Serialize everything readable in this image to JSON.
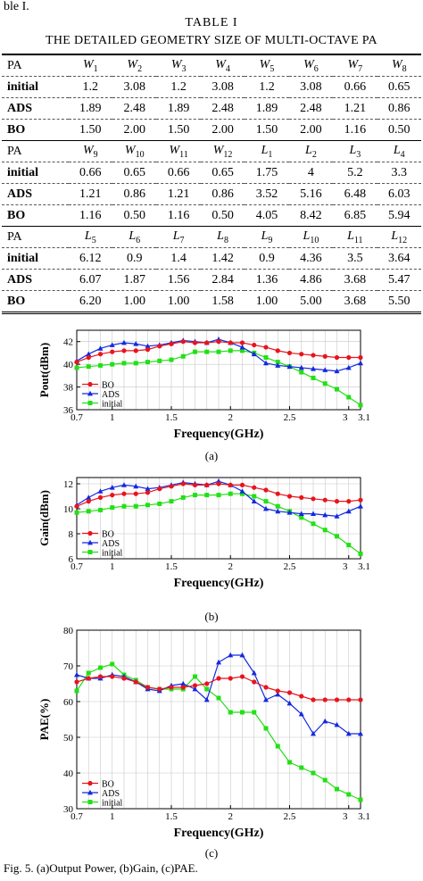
{
  "fragment_text": "ble I.",
  "table": {
    "label": "TABLE I",
    "title": "THE DETAILED GEOMETRY SIZE OF MULTI-OCTAVE PA",
    "blocks": [
      {
        "header": [
          "PA",
          "W1",
          "W2",
          "W3",
          "W4",
          "W5",
          "W6",
          "W7",
          "W8"
        ],
        "rows": [
          [
            "initial",
            "1.2",
            "3.08",
            "1.2",
            "3.08",
            "1.2",
            "3.08",
            "0.66",
            "0.65"
          ],
          [
            "ADS",
            "1.89",
            "2.48",
            "1.89",
            "2.48",
            "1.89",
            "2.48",
            "1.21",
            "0.86"
          ],
          [
            "BO",
            "1.50",
            "2.00",
            "1.50",
            "2.00",
            "1.50",
            "2.00",
            "1.16",
            "0.50"
          ]
        ]
      },
      {
        "header": [
          "PA",
          "W9",
          "W10",
          "W11",
          "W12",
          "L1",
          "L2",
          "L3",
          "L4"
        ],
        "rows": [
          [
            "initial",
            "0.66",
            "0.65",
            "0.66",
            "0.65",
            "1.75",
            "4",
            "5.2",
            "3.3"
          ],
          [
            "ADS",
            "1.21",
            "0.86",
            "1.21",
            "0.86",
            "3.52",
            "5.16",
            "6.48",
            "6.03"
          ],
          [
            "BO",
            "1.16",
            "0.50",
            "1.16",
            "0.50",
            "4.05",
            "8.42",
            "6.85",
            "5.94"
          ]
        ]
      },
      {
        "header": [
          "PA",
          "L5",
          "L6",
          "L7",
          "L8",
          "L9",
          "L10",
          "L11",
          "L12"
        ],
        "rows": [
          [
            "initial",
            "6.12",
            "0.9",
            "1.4",
            "1.42",
            "0.9",
            "4.36",
            "3.5",
            "3.64"
          ],
          [
            "ADS",
            "6.07",
            "1.87",
            "1.56",
            "2.84",
            "1.36",
            "4.86",
            "3.68",
            "5.47"
          ],
          [
            "BO",
            "6.20",
            "1.00",
            "1.00",
            "1.58",
            "1.00",
            "5.00",
            "3.68",
            "5.50"
          ]
        ]
      }
    ]
  },
  "colors": {
    "BO": "#e8141c",
    "ADS": "#1428e0",
    "initial": "#22e014"
  },
  "chart_data": [
    {
      "type": "line",
      "subcaption": "(a)",
      "xlabel": "Frequency(GHz)",
      "ylabel": "Pout(dBm)",
      "xlim": [
        0.7,
        3.1
      ],
      "ylim": [
        36,
        43
      ],
      "xticks": [
        "0.7",
        "1",
        "1.5",
        "2",
        "2.5",
        "3",
        "3.1"
      ],
      "yticks": [
        "36",
        "38",
        "40",
        "42"
      ],
      "grid": true,
      "legend": "bottom-left",
      "x": [
        0.7,
        0.8,
        0.9,
        1.0,
        1.1,
        1.2,
        1.3,
        1.4,
        1.5,
        1.6,
        1.7,
        1.8,
        1.9,
        2.0,
        2.1,
        2.2,
        2.3,
        2.4,
        2.5,
        2.6,
        2.7,
        2.8,
        2.9,
        3.0,
        3.1
      ],
      "series": [
        {
          "name": "BO",
          "values": [
            40.2,
            40.6,
            40.9,
            41.1,
            41.2,
            41.2,
            41.3,
            41.6,
            41.8,
            42.0,
            41.9,
            41.9,
            42.0,
            41.9,
            41.9,
            41.7,
            41.5,
            41.2,
            41.0,
            40.9,
            40.8,
            40.7,
            40.6,
            40.6,
            40.6
          ]
        },
        {
          "name": "ADS",
          "values": [
            40.3,
            40.9,
            41.4,
            41.7,
            41.9,
            41.8,
            41.6,
            41.7,
            41.9,
            42.1,
            42.0,
            41.9,
            42.2,
            41.9,
            41.5,
            40.9,
            40.1,
            39.9,
            39.8,
            39.7,
            39.6,
            39.5,
            39.4,
            39.7,
            40.1
          ]
        },
        {
          "name": "initial",
          "values": [
            39.7,
            39.8,
            39.9,
            40.0,
            40.1,
            40.1,
            40.2,
            40.3,
            40.4,
            40.7,
            41.1,
            41.1,
            41.1,
            41.2,
            41.2,
            41.0,
            40.6,
            40.2,
            39.8,
            39.3,
            38.8,
            38.3,
            37.8,
            37.1,
            36.4
          ]
        }
      ]
    },
    {
      "type": "line",
      "subcaption": "(b)",
      "xlabel": "Frequency(GHz)",
      "ylabel": "Gain(dBm)",
      "xlim": [
        0.7,
        3.1
      ],
      "ylim": [
        6,
        12.5
      ],
      "xticks": [
        "0.7",
        "1",
        "1.5",
        "2",
        "2.5",
        "3",
        "3.1"
      ],
      "yticks": [
        "6",
        "8",
        "10",
        "12"
      ],
      "grid": true,
      "legend": "bottom-left",
      "x": [
        0.7,
        0.8,
        0.9,
        1.0,
        1.1,
        1.2,
        1.3,
        1.4,
        1.5,
        1.6,
        1.7,
        1.8,
        1.9,
        2.0,
        2.1,
        2.2,
        2.3,
        2.4,
        2.5,
        2.6,
        2.7,
        2.8,
        2.9,
        3.0,
        3.1
      ],
      "series": [
        {
          "name": "BO",
          "values": [
            10.2,
            10.6,
            10.9,
            11.1,
            11.2,
            11.2,
            11.3,
            11.6,
            11.8,
            12.0,
            11.9,
            11.9,
            12.0,
            11.9,
            11.9,
            11.7,
            11.5,
            11.2,
            11.0,
            10.9,
            10.8,
            10.7,
            10.6,
            10.6,
            10.7
          ]
        },
        {
          "name": "ADS",
          "values": [
            10.3,
            10.9,
            11.4,
            11.7,
            11.9,
            11.8,
            11.6,
            11.7,
            11.9,
            12.1,
            12.0,
            11.9,
            12.2,
            11.9,
            11.4,
            10.6,
            10.0,
            9.8,
            9.7,
            9.6,
            9.6,
            9.5,
            9.4,
            9.8,
            10.2
          ]
        },
        {
          "name": "initial",
          "values": [
            9.7,
            9.8,
            9.9,
            10.1,
            10.2,
            10.2,
            10.3,
            10.4,
            10.6,
            10.9,
            11.1,
            11.1,
            11.1,
            11.2,
            11.2,
            11.0,
            10.6,
            10.2,
            9.8,
            9.3,
            8.8,
            8.3,
            7.8,
            7.1,
            6.4
          ]
        }
      ]
    },
    {
      "type": "line",
      "subcaption": "(c)",
      "xlabel": "Frequency(GHz)",
      "ylabel": "PAE(%)",
      "xlim": [
        0.7,
        3.1
      ],
      "ylim": [
        30,
        80
      ],
      "xticks": [
        "0.7",
        "1",
        "1.5",
        "2",
        "2.5",
        "3",
        "3.1"
      ],
      "yticks": [
        "30",
        "40",
        "50",
        "60",
        "70",
        "80"
      ],
      "grid": true,
      "legend": "bottom-left",
      "x": [
        0.7,
        0.8,
        0.9,
        1.0,
        1.1,
        1.2,
        1.3,
        1.4,
        1.5,
        1.6,
        1.7,
        1.8,
        1.9,
        2.0,
        2.1,
        2.2,
        2.3,
        2.4,
        2.5,
        2.6,
        2.7,
        2.8,
        2.9,
        3.0,
        3.1
      ],
      "series": [
        {
          "name": "BO",
          "values": [
            65.5,
            66.5,
            67.0,
            67.0,
            66.5,
            65.5,
            64.0,
            63.5,
            64.0,
            64.0,
            64.5,
            65.0,
            66.5,
            66.5,
            67.0,
            65.5,
            64.0,
            63.0,
            62.5,
            61.5,
            60.5,
            60.5,
            60.5,
            60.5,
            60.5
          ]
        },
        {
          "name": "ADS",
          "values": [
            67.5,
            66.5,
            66.5,
            67.5,
            67.0,
            65.5,
            63.5,
            63.0,
            64.5,
            65.0,
            63.5,
            60.5,
            71.0,
            73.0,
            73.0,
            68.0,
            60.5,
            62.0,
            59.5,
            56.5,
            51.0,
            54.5,
            53.5,
            51.0,
            51.0
          ]
        },
        {
          "name": "initial",
          "values": [
            63.0,
            68.0,
            69.5,
            70.5,
            67.5,
            66.0,
            64.0,
            63.5,
            63.5,
            63.5,
            67.0,
            63.5,
            61.0,
            57.0,
            57.0,
            57.0,
            52.5,
            47.5,
            43.0,
            41.5,
            40.0,
            38.0,
            35.5,
            34.0,
            32.5
          ]
        }
      ]
    }
  ],
  "figure_caption": "Fig. 5. (a)Output Power, (b)Gain, (c)PAE."
}
